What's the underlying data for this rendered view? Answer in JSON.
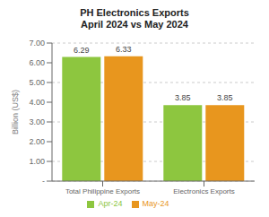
{
  "chart_data": {
    "type": "bar",
    "title": "PH Electronics Exports",
    "subtitle": "April 2024 vs May 2024",
    "categories": [
      "Total Philippine Exports",
      "Electronics Exports"
    ],
    "series": [
      {
        "name": "Apr-24",
        "color": "#8dc63f",
        "values": [
          6.29,
          3.85
        ]
      },
      {
        "name": "May-24",
        "color": "#e8961e",
        "values": [
          6.33,
          3.85
        ]
      }
    ],
    "ylabel": "Billion (US$)",
    "ylim": [
      0,
      7.0
    ],
    "yticks": [
      {
        "value": 0,
        "label": "-"
      },
      {
        "value": 1.0,
        "label": "1.00"
      },
      {
        "value": 2.0,
        "label": "2.00"
      },
      {
        "value": 3.0,
        "label": "3.00"
      },
      {
        "value": 4.0,
        "label": "4.00"
      },
      {
        "value": 5.0,
        "label": "5.00"
      },
      {
        "value": 6.0,
        "label": "6.00"
      },
      {
        "value": 7.0,
        "label": "7.00"
      }
    ],
    "grid": true,
    "data_labels": true,
    "legend": "bottom"
  }
}
